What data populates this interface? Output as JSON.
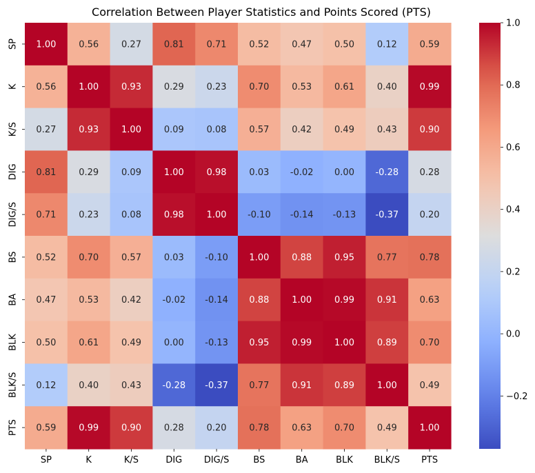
{
  "chart_data": {
    "type": "heatmap",
    "title": "Correlation Between Player Statistics and Points Scored (PTS)",
    "xlabel": "",
    "ylabel": "",
    "row_labels": [
      "SP",
      "K",
      "K/S",
      "DIG",
      "DIG/S",
      "BS",
      "BA",
      "BLK",
      "BLK/S",
      "PTS"
    ],
    "col_labels": [
      "SP",
      "K",
      "K/S",
      "DIG",
      "DIG/S",
      "BS",
      "BA",
      "BLK",
      "BLK/S",
      "PTS"
    ],
    "values": [
      [
        1.0,
        0.56,
        0.27,
        0.81,
        0.71,
        0.52,
        0.47,
        0.5,
        0.12,
        0.59
      ],
      [
        0.56,
        1.0,
        0.93,
        0.29,
        0.23,
        0.7,
        0.53,
        0.61,
        0.4,
        0.99
      ],
      [
        0.27,
        0.93,
        1.0,
        0.09,
        0.08,
        0.57,
        0.42,
        0.49,
        0.43,
        0.9
      ],
      [
        0.81,
        0.29,
        0.09,
        1.0,
        0.98,
        0.03,
        -0.02,
        -0.0,
        -0.28,
        0.28
      ],
      [
        0.71,
        0.23,
        0.08,
        0.98,
        1.0,
        -0.1,
        -0.14,
        -0.13,
        -0.37,
        0.2
      ],
      [
        0.52,
        0.7,
        0.57,
        0.03,
        -0.1,
        1.0,
        0.88,
        0.95,
        0.77,
        0.78
      ],
      [
        0.47,
        0.53,
        0.42,
        -0.02,
        -0.14,
        0.88,
        1.0,
        0.99,
        0.91,
        0.63
      ],
      [
        0.5,
        0.61,
        0.49,
        -0.0,
        -0.13,
        0.95,
        0.99,
        1.0,
        0.89,
        0.7
      ],
      [
        0.12,
        0.4,
        0.43,
        -0.28,
        -0.37,
        0.77,
        0.91,
        0.89,
        1.0,
        0.49
      ],
      [
        0.59,
        0.99,
        0.9,
        0.28,
        0.2,
        0.78,
        0.63,
        0.7,
        0.49,
        1.0
      ]
    ],
    "value_format": "0.00",
    "colormap": "coolwarm",
    "vmin": -0.37,
    "vmax": 1.0,
    "colorbar": {
      "ticks": [
        -0.2,
        0.0,
        0.2,
        0.4,
        0.6,
        0.8,
        1.0
      ],
      "tick_labels": [
        "−0.2",
        "0.0",
        "0.2",
        "0.4",
        "0.6",
        "0.8",
        "1.0"
      ]
    },
    "legend_position": "right"
  }
}
